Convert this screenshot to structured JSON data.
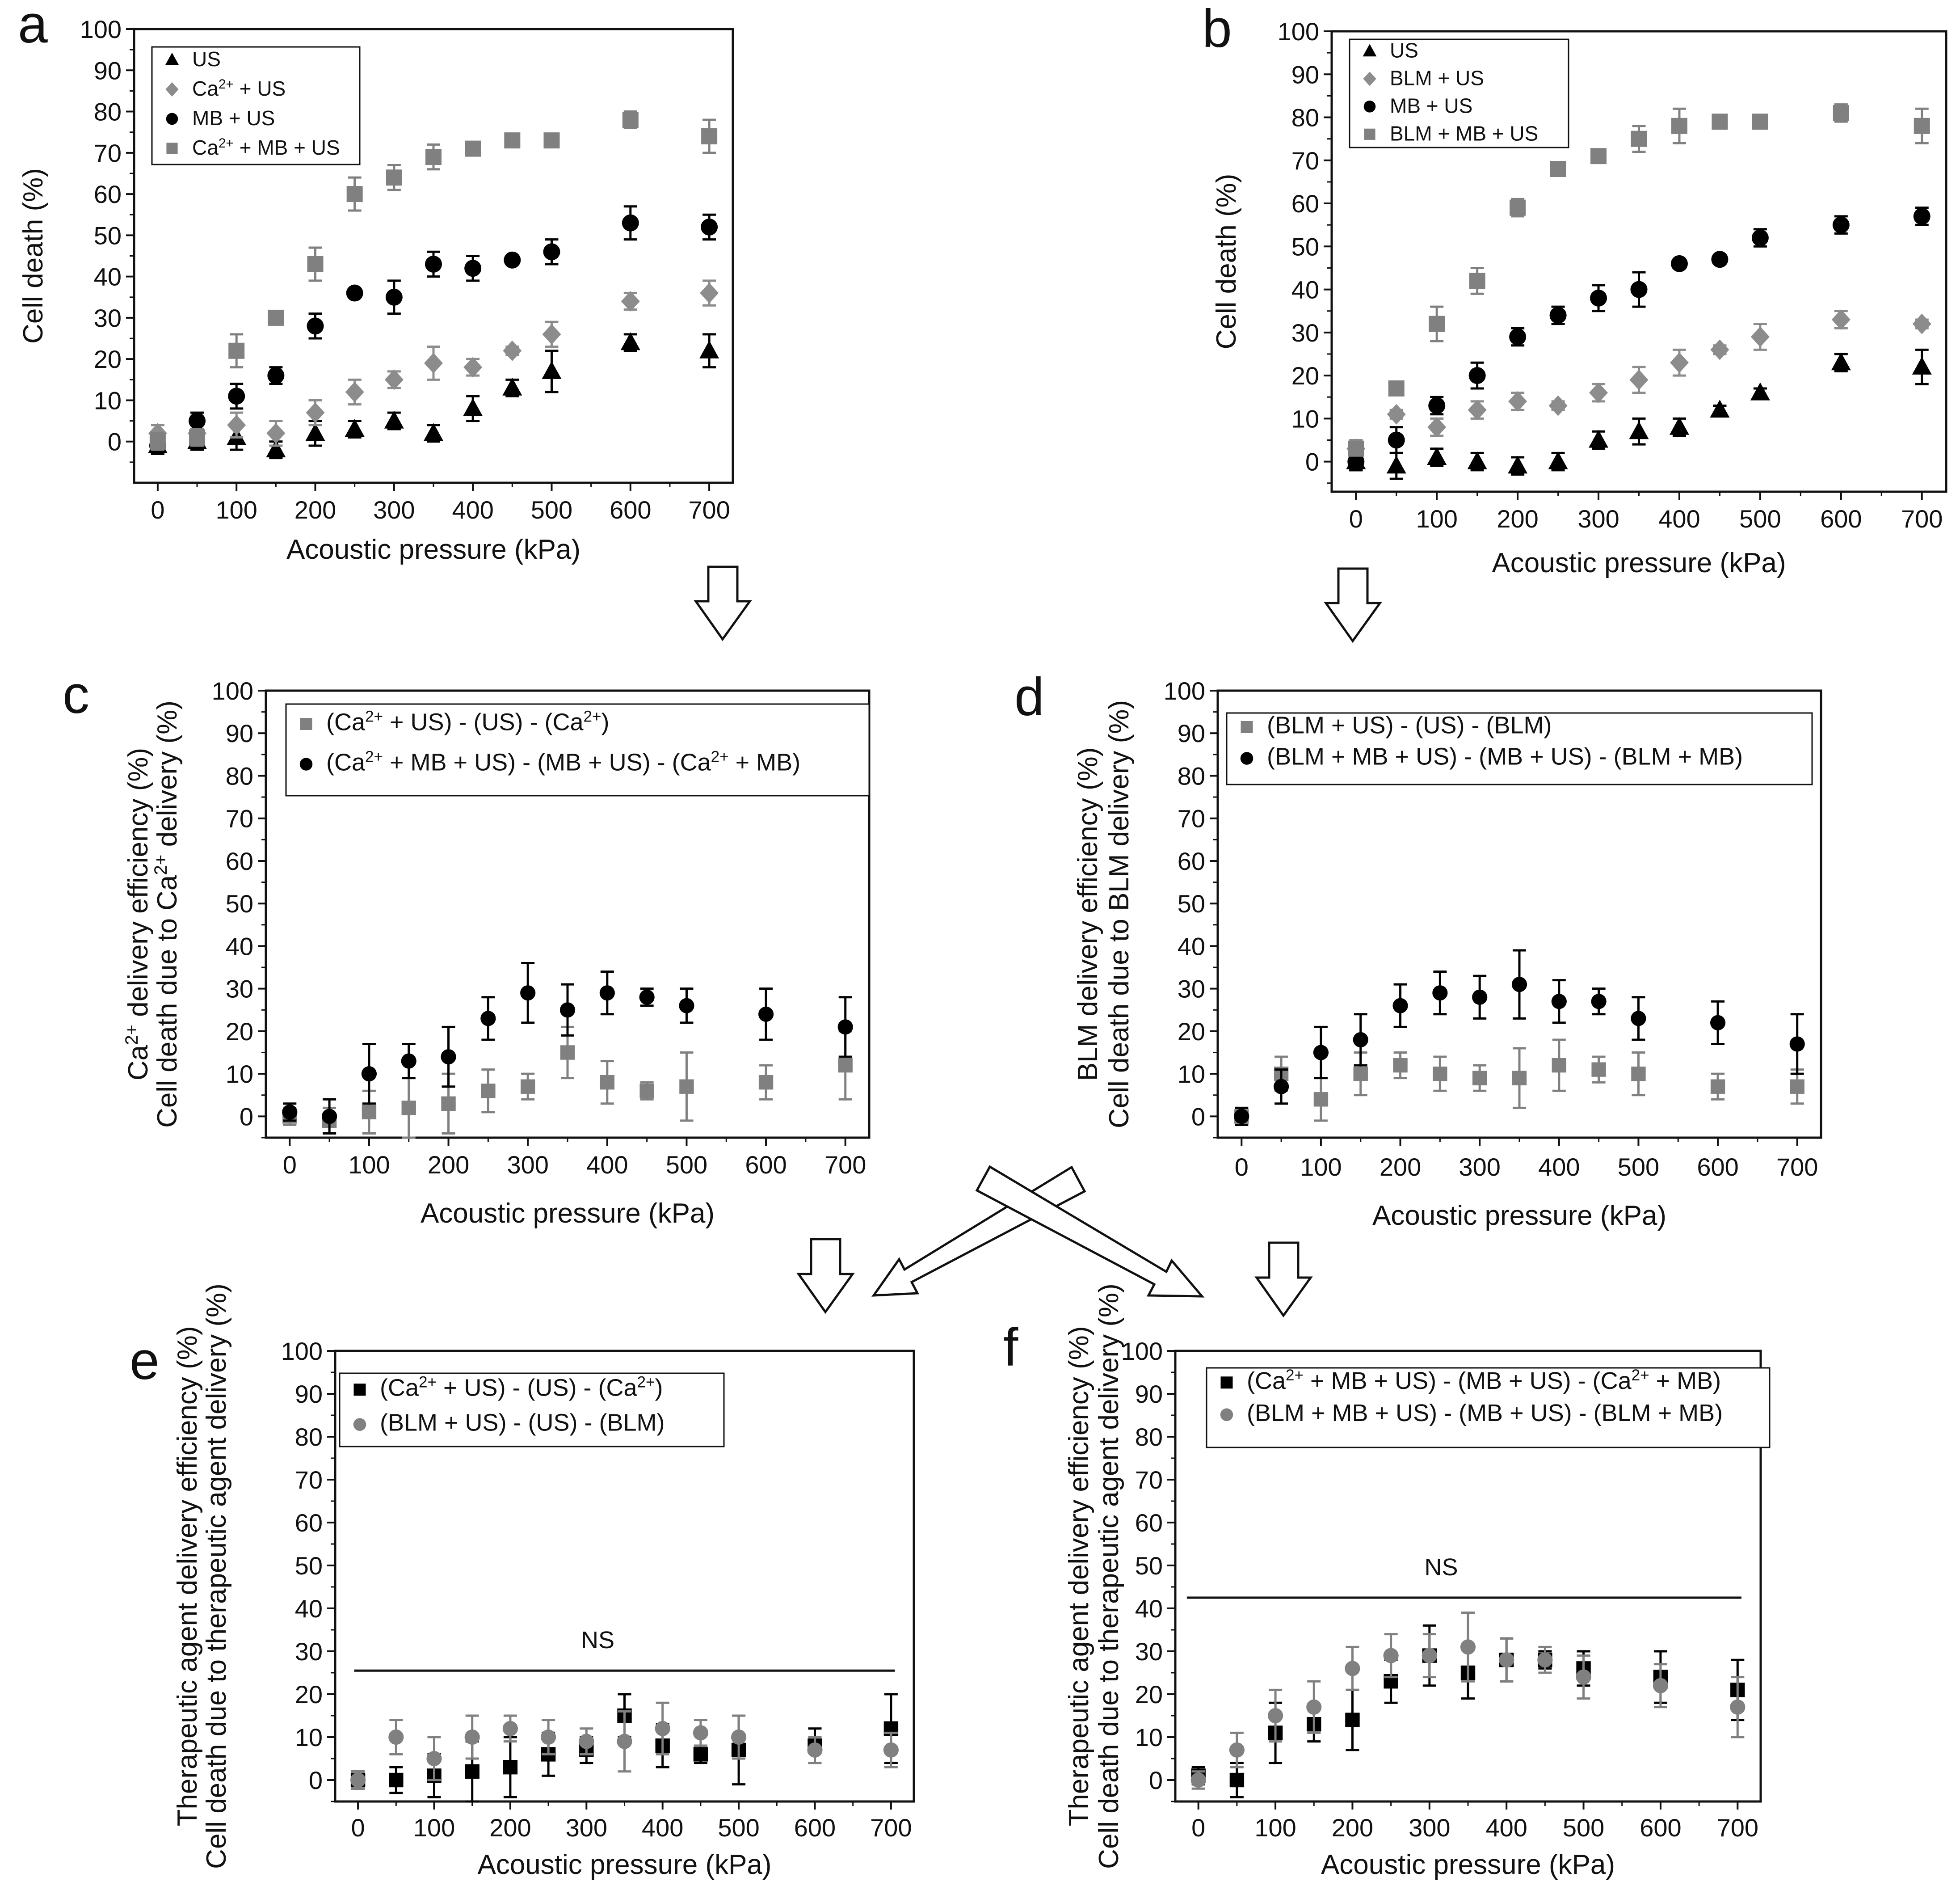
{
  "colors": {
    "black": "#000000",
    "gray": "#808080",
    "diamond_gray": "#8c8c8c"
  },
  "arrows": [
    "down-arrow-a",
    "down-arrow-b",
    "down-arrow-c",
    "cross-arrow-c-to-f",
    "cross-arrow-d-to-e",
    "down-arrow-d"
  ],
  "chart_data": [
    {
      "id": "a",
      "panel_label": "a",
      "type": "scatter",
      "xlabel": "Acoustic pressure (kPa)",
      "ylabel": [
        "Cell death (%)"
      ],
      "xlim": [
        -30,
        730
      ],
      "ylim": [
        -10,
        100
      ],
      "xticks": [
        0,
        100,
        200,
        300,
        400,
        500,
        600,
        700
      ],
      "yticks": [
        0,
        10,
        20,
        30,
        40,
        50,
        60,
        70,
        80,
        90,
        100
      ],
      "x": [
        0,
        50,
        100,
        150,
        200,
        250,
        300,
        350,
        400,
        450,
        500,
        600,
        700
      ],
      "legend": [
        [
          "US"
        ],
        [
          "Ca",
          "2+",
          " + US"
        ],
        [
          "MB + US"
        ],
        [
          "Ca",
          "2+",
          " + MB + US"
        ]
      ],
      "series": [
        {
          "name": "US",
          "marker": "triangle",
          "color": "#000000",
          "values": [
            -1,
            0,
            1,
            -2,
            2,
            3,
            5,
            2,
            8,
            13,
            17,
            24,
            22
          ],
          "errors": [
            2,
            2,
            3,
            2,
            3,
            2,
            2,
            2,
            3,
            2,
            5,
            2,
            4
          ]
        },
        {
          "name": "Ca2+ + US",
          "marker": "diamond",
          "color": "#8c8c8c",
          "values": [
            2,
            2,
            4,
            2,
            7,
            12,
            15,
            19,
            18,
            22,
            26,
            34,
            36
          ],
          "errors": [
            2,
            2,
            3,
            3,
            3,
            3,
            2,
            4,
            2,
            1,
            3,
            2,
            3
          ]
        },
        {
          "name": "MB + US",
          "marker": "circle",
          "color": "#000000",
          "values": [
            -1,
            5,
            11,
            16,
            28,
            36,
            35,
            43,
            42,
            44,
            46,
            53,
            52
          ],
          "errors": [
            2,
            2,
            3,
            2,
            3,
            1,
            4,
            3,
            3,
            1,
            3,
            4,
            3
          ]
        },
        {
          "name": "Ca2+ + MB + US",
          "marker": "square",
          "color": "#808080",
          "values": [
            0,
            1,
            22,
            30,
            43,
            60,
            64,
            69,
            71,
            73,
            73,
            78,
            74
          ],
          "errors": [
            2,
            2,
            4,
            1,
            4,
            4,
            3,
            3,
            1,
            1,
            1,
            2,
            4
          ]
        }
      ]
    },
    {
      "id": "b",
      "panel_label": "b",
      "type": "scatter",
      "xlabel": "Acoustic pressure (kPa)",
      "ylabel": [
        "Cell death (%)"
      ],
      "xlim": [
        -30,
        730
      ],
      "ylim": [
        -7,
        100
      ],
      "xticks": [
        0,
        100,
        200,
        300,
        400,
        500,
        600,
        700
      ],
      "yticks": [
        0,
        10,
        20,
        30,
        40,
        50,
        60,
        70,
        80,
        90,
        100
      ],
      "x": [
        0,
        50,
        100,
        150,
        200,
        250,
        300,
        350,
        400,
        450,
        500,
        600,
        700
      ],
      "legend": [
        [
          "US"
        ],
        [
          "BLM + US"
        ],
        [
          "MB + US"
        ],
        [
          "BLM + MB + US"
        ]
      ],
      "series": [
        {
          "name": "US",
          "marker": "triangle",
          "color": "#000000",
          "values": [
            0,
            -1,
            1,
            0,
            -1,
            0,
            5,
            7,
            8,
            12,
            16,
            23,
            22
          ],
          "errors": [
            2,
            3,
            2,
            2,
            2,
            2,
            2,
            3,
            2,
            1,
            1,
            2,
            4
          ]
        },
        {
          "name": "BLM + US",
          "marker": "diamond",
          "color": "#8c8c8c",
          "values": [
            3,
            11,
            8,
            12,
            14,
            13,
            16,
            19,
            23,
            26,
            29,
            33,
            32
          ],
          "errors": [
            2,
            1,
            2,
            2,
            2,
            1,
            2,
            3,
            3,
            1,
            3,
            2,
            1
          ]
        },
        {
          "name": "MB + US",
          "marker": "circle",
          "color": "#000000",
          "values": [
            0,
            5,
            13,
            20,
            29,
            34,
            38,
            40,
            46,
            47,
            52,
            55,
            57
          ],
          "errors": [
            2,
            3,
            2,
            3,
            2,
            2,
            3,
            4,
            1,
            1,
            2,
            2,
            2
          ]
        },
        {
          "name": "BLM + MB + US",
          "marker": "square",
          "color": "#808080",
          "values": [
            3,
            17,
            32,
            42,
            59,
            68,
            71,
            75,
            78,
            79,
            79,
            81,
            78
          ],
          "errors": [
            1,
            1,
            4,
            3,
            2,
            1,
            1,
            3,
            4,
            1,
            1,
            2,
            4
          ]
        }
      ]
    },
    {
      "id": "c",
      "panel_label": "c",
      "type": "scatter",
      "xlabel": "Acoustic pressure (kPa)",
      "ylabel": [
        "Ca",
        "2+",
        " delivery efficiency (%)",
        "Cell death due to Ca",
        "2+",
        " delivery (%)"
      ],
      "xlim": [
        -30,
        730
      ],
      "ylim": [
        -5,
        100
      ],
      "xticks": [
        0,
        100,
        200,
        300,
        400,
        500,
        600,
        700
      ],
      "yticks": [
        0,
        10,
        20,
        30,
        40,
        50,
        60,
        70,
        80,
        90,
        100
      ],
      "x": [
        0,
        50,
        100,
        150,
        200,
        250,
        300,
        350,
        400,
        450,
        500,
        600,
        700
      ],
      "legend": [
        [
          "(Ca",
          "2+",
          " + US) - (US) - (Ca",
          "2+",
          ")"
        ],
        [
          "(Ca",
          "2+",
          " + MB + US) - (MB + US) - (Ca",
          "2+",
          " + MB)"
        ]
      ],
      "series": [
        {
          "name": "(Ca2+ + US) - (US) - (Ca2+)",
          "marker": "square",
          "color": "#808080",
          "values": [
            0,
            -1,
            1,
            2,
            3,
            6,
            7,
            15,
            8,
            6,
            7,
            8,
            12
          ],
          "errors": [
            2,
            3,
            5,
            7,
            7,
            5,
            3,
            6,
            5,
            2,
            8,
            4,
            8
          ]
        },
        {
          "name": "(Ca2+ + MB + US) - (MB + US) - (Ca2+ + MB)",
          "marker": "circle",
          "color": "#000000",
          "values": [
            1,
            0,
            10,
            13,
            14,
            23,
            29,
            25,
            29,
            28,
            26,
            24,
            21
          ],
          "errors": [
            2,
            4,
            7,
            4,
            7,
            5,
            7,
            6,
            5,
            2,
            4,
            6,
            7
          ]
        }
      ]
    },
    {
      "id": "d",
      "panel_label": "d",
      "type": "scatter",
      "xlabel": "Acoustic pressure (kPa)",
      "ylabel": [
        "BLM delivery efficiency (%)",
        "Cell death due to BLM delivery (%)"
      ],
      "xlim": [
        -30,
        730
      ],
      "ylim": [
        -5,
        100
      ],
      "xticks": [
        0,
        100,
        200,
        300,
        400,
        500,
        600,
        700
      ],
      "yticks": [
        0,
        10,
        20,
        30,
        40,
        50,
        60,
        70,
        80,
        90,
        100
      ],
      "x": [
        0,
        50,
        100,
        150,
        200,
        250,
        300,
        350,
        400,
        450,
        500,
        600,
        700
      ],
      "legend": [
        [
          "(BLM + US) - (US) - (BLM)"
        ],
        [
          "(BLM + MB + US) - (MB + US) - (BLM + MB)"
        ]
      ],
      "series": [
        {
          "name": "(BLM + US) - (US) - (BLM)",
          "marker": "square",
          "color": "#808080",
          "values": [
            0,
            10,
            4,
            10,
            12,
            10,
            9,
            9,
            12,
            11,
            10,
            7,
            7
          ],
          "errors": [
            2,
            4,
            5,
            5,
            3,
            4,
            3,
            7,
            6,
            3,
            5,
            3,
            4
          ]
        },
        {
          "name": "(BLM + MB + US) - (MB + US) - (BLM + MB)",
          "marker": "circle",
          "color": "#000000",
          "values": [
            0,
            7,
            15,
            18,
            26,
            29,
            28,
            31,
            27,
            27,
            23,
            22,
            17
          ],
          "errors": [
            2,
            4,
            6,
            6,
            5,
            5,
            5,
            8,
            5,
            3,
            5,
            5,
            7
          ]
        }
      ]
    },
    {
      "id": "e",
      "panel_label": "e",
      "type": "scatter",
      "xlabel": "Acoustic pressure (kPa)",
      "ylabel": [
        "Therapeutic agent delivery efficiency (%)",
        "Cell death due to therapeutic agent delivery (%)"
      ],
      "xlim": [
        -30,
        730
      ],
      "ylim": [
        -5,
        100
      ],
      "xticks": [
        0,
        100,
        200,
        300,
        400,
        500,
        600,
        700
      ],
      "yticks": [
        0,
        10,
        20,
        30,
        40,
        50,
        60,
        70,
        80,
        90,
        100
      ],
      "x": [
        0,
        50,
        100,
        150,
        200,
        250,
        300,
        350,
        400,
        450,
        500,
        600,
        700
      ],
      "annotation": {
        "text": "NS",
        "y_level": 25.5,
        "x_range": [
          -5,
          705
        ]
      },
      "legend": [
        [
          "(Ca",
          "2+",
          " + US) - (US) - (Ca",
          "2+",
          ")"
        ],
        [
          "(BLM + US) - (US) - (BLM)"
        ]
      ],
      "series": [
        {
          "name": "(Ca2+ + US) - (US) - (Ca2+)",
          "marker": "square",
          "color": "#000000",
          "values": [
            0,
            0,
            1,
            2,
            3,
            6,
            7,
            15,
            8,
            6,
            7,
            8,
            12
          ],
          "errors": [
            2,
            3,
            5,
            7,
            7,
            5,
            3,
            5,
            5,
            2,
            8,
            4,
            8
          ]
        },
        {
          "name": "(BLM + US) - (US) - (BLM)",
          "marker": "circle",
          "color": "#808080",
          "values": [
            0,
            10,
            5,
            10,
            12,
            10,
            9,
            9,
            12,
            11,
            10,
            7,
            7
          ],
          "errors": [
            2,
            4,
            5,
            5,
            3,
            4,
            3,
            7,
            6,
            3,
            5,
            3,
            4
          ]
        }
      ]
    },
    {
      "id": "f",
      "panel_label": "f",
      "type": "scatter",
      "xlabel": "Acoustic pressure (kPa)",
      "ylabel": [
        "Therapeutic agent delivery efficiency (%)",
        "Cell death due to therapeutic agent delivery (%)"
      ],
      "xlim": [
        -30,
        730
      ],
      "ylim": [
        -5,
        100
      ],
      "xticks": [
        0,
        100,
        200,
        300,
        400,
        500,
        600,
        700
      ],
      "yticks": [
        0,
        10,
        20,
        30,
        40,
        50,
        60,
        70,
        80,
        90,
        100
      ],
      "x": [
        0,
        50,
        100,
        150,
        200,
        250,
        300,
        350,
        400,
        450,
        500,
        600,
        700
      ],
      "annotation": {
        "text": "NS",
        "y_level": 42.5,
        "x_range": [
          -15,
          705
        ]
      },
      "legend": [
        [
          "(Ca",
          "2+",
          " + MB + US) - (MB + US) - (Ca",
          "2+",
          " + MB)"
        ],
        [
          "(BLM + MB + US) - (MB + US) - (BLM + MB)"
        ]
      ],
      "series": [
        {
          "name": "(Ca2+ + MB + US) - (MB + US) - (Ca2+ + MB)",
          "marker": "square",
          "color": "#000000",
          "values": [
            1,
            0,
            11,
            13,
            14,
            23,
            29,
            25,
            28,
            28,
            26,
            24,
            21
          ],
          "errors": [
            2,
            4,
            7,
            4,
            7,
            5,
            7,
            6,
            5,
            2,
            4,
            6,
            7
          ]
        },
        {
          "name": "(BLM + MB + US) - (MB + US) - (BLM + MB)",
          "marker": "circle",
          "color": "#808080",
          "values": [
            0,
            7,
            15,
            17,
            26,
            29,
            29,
            31,
            28,
            28,
            24,
            22,
            17
          ],
          "errors": [
            2,
            4,
            6,
            6,
            5,
            5,
            5,
            8,
            5,
            3,
            5,
            5,
            7
          ]
        }
      ]
    }
  ]
}
